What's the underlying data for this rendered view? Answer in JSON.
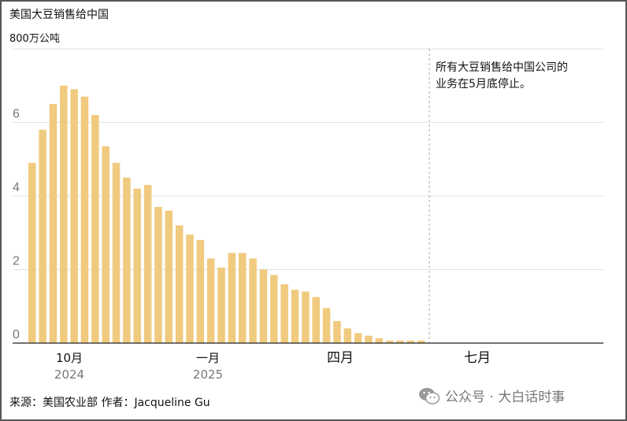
{
  "chart_data": {
    "type": "bar",
    "title": "美国大豆销售给中国",
    "ylabel": "800万公吨",
    "ylim": [
      0,
      8
    ],
    "yticks": [
      0,
      2,
      4,
      6
    ],
    "grid": true,
    "bar_color": "#F0CA7E",
    "values": [
      4.9,
      5.8,
      6.5,
      7.0,
      6.9,
      6.7,
      6.2,
      5.35,
      4.9,
      4.5,
      4.2,
      4.3,
      3.7,
      3.6,
      3.2,
      2.95,
      2.8,
      2.3,
      2.05,
      2.45,
      2.45,
      2.3,
      2.0,
      1.85,
      1.6,
      1.45,
      1.4,
      1.25,
      0.95,
      0.6,
      0.4,
      0.27,
      0.2,
      0.13,
      0.07,
      0.07,
      0.07,
      0.07
    ],
    "xticks": [
      {
        "label": "10月",
        "year": "2024"
      },
      {
        "label": "一月",
        "year": "2025"
      },
      {
        "label": "四月",
        "year": ""
      },
      {
        "label": "七月",
        "year": ""
      }
    ],
    "annotation": "所有大豆销售给中国公司的业务在5月底停止。"
  },
  "note_lines": [
    "所有大豆销售给中国公司的",
    "业务在5月底停止。"
  ],
  "source": "来源：美国农业部 作者：Jacqueline Gu",
  "watermark": "公众号 · 大白话时事"
}
